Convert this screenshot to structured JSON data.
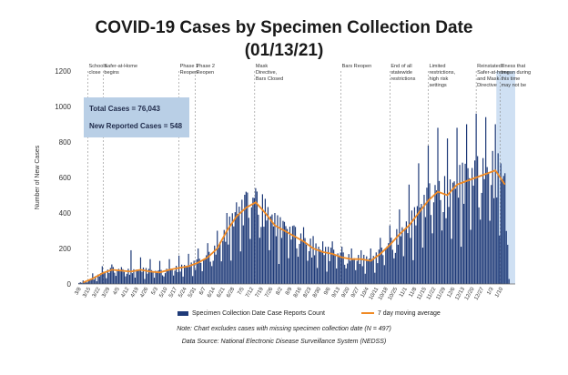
{
  "chart_data": {
    "type": "bar",
    "title": "COVID-19 Cases by Specimen Collection Date",
    "subtitle": "(01/13/21)",
    "ylabel": "Number of New Cases",
    "ylim": [
      0,
      1200
    ],
    "yticks": [
      "0",
      "200",
      "400",
      "600",
      "800",
      "1000",
      "1200"
    ],
    "xticks": [
      "3/8",
      "3/15",
      "3/22",
      "3/29",
      "4/5",
      "4/12",
      "4/19",
      "4/26",
      "5/3",
      "5/10",
      "5/17",
      "5/24",
      "5/31",
      "6/7",
      "6/14",
      "6/21",
      "6/28",
      "7/5",
      "7/12",
      "7/19",
      "7/26",
      "8/2",
      "8/9",
      "8/16",
      "8/23",
      "8/30",
      "9/6",
      "9/13",
      "9/20",
      "9/27",
      "10/4",
      "10/11",
      "10/18",
      "10/25",
      "11/1",
      "11/8",
      "11/15",
      "11/22",
      "11/29",
      "12/6",
      "12/13",
      "12/20",
      "12/27",
      "1/3",
      "1/10"
    ],
    "weekly_avg": [
      8,
      30,
      60,
      80,
      75,
      70,
      80,
      70,
      65,
      80,
      90,
      100,
      120,
      150,
      200,
      300,
      380,
      430,
      460,
      400,
      330,
      300,
      270,
      240,
      200,
      180,
      170,
      150,
      140,
      140,
      130,
      170,
      220,
      280,
      330,
      400,
      470,
      520,
      500,
      560,
      580,
      600,
      620,
      640,
      560
    ],
    "weekly_peak": [
      20,
      60,
      100,
      110,
      95,
      190,
      150,
      140,
      130,
      140,
      160,
      170,
      200,
      230,
      300,
      400,
      460,
      520,
      540,
      480,
      400,
      350,
      330,
      320,
      270,
      240,
      240,
      210,
      200,
      190,
      200,
      260,
      330,
      420,
      560,
      680,
      780,
      880,
      820,
      880,
      900,
      960,
      940,
      900,
      800
    ],
    "series": [
      {
        "name": "Specimen Collection Date Case Reports Count",
        "color": "#1e3a78"
      },
      {
        "name": "7 day moving average",
        "color": "#f08a24"
      }
    ],
    "annotations": [
      {
        "week": 1,
        "text": "Schools close"
      },
      {
        "week": 2.6,
        "text": "Safer-at-Home begins"
      },
      {
        "week": 10.5,
        "text": "Phase 1 Reopen"
      },
      {
        "week": 12.2,
        "text": "Phase 2 Reopen"
      },
      {
        "week": 18.4,
        "text": "Mask Directive, Bars Closed"
      },
      {
        "week": 27.4,
        "text": "Bars Reopen"
      },
      {
        "week": 32.5,
        "text": "End of all statewide restrictions"
      },
      {
        "week": 36.5,
        "text": "Limited restrictions, high risk settings"
      },
      {
        "week": 41.5,
        "text": "Reinstated Safer-at-home and Mask Directive"
      },
      {
        "week": 44.0,
        "text": "Illness that began during this time may not be"
      }
    ],
    "totals": {
      "total": "Total Cases = 76,043",
      "new": "New Reported Cases = 548"
    },
    "note": "Note: Chart excludes cases with missing specimen collection date (N = 497)",
    "source": "Data Source: National Electronic Disease Surveillance System (NEDSS)"
  }
}
